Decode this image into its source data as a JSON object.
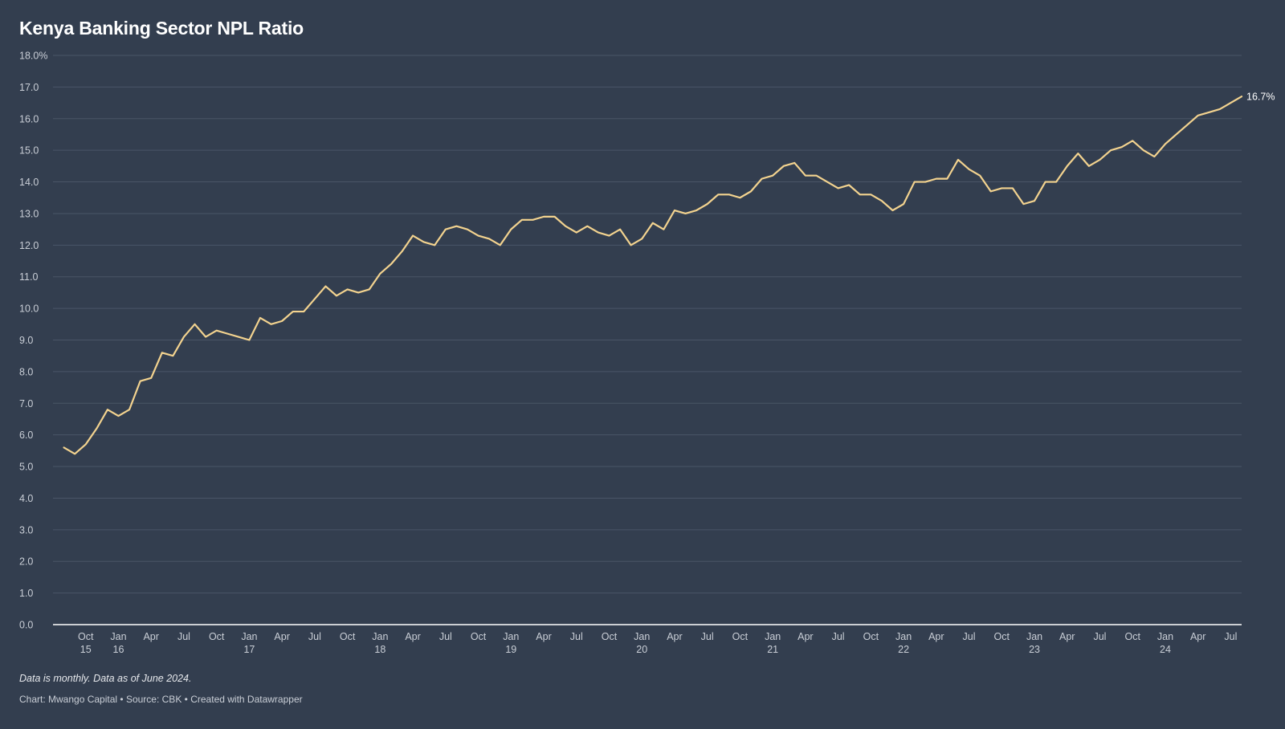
{
  "title": "Kenya Banking Sector NPL Ratio",
  "footer": {
    "note": "Data is monthly. Data as of June 2024.",
    "credit_chart": "Chart: Mwango Capital",
    "credit_source": "Source: CBK",
    "credit_tool": "Created with Datawrapper",
    "separator": "•"
  },
  "colors": {
    "background": "#333e4f",
    "line": "#f3d38f",
    "grid": "#4a5567",
    "axis": "#ffffff",
    "tick_text": "#c9ced6"
  },
  "chart_data": {
    "type": "line",
    "title": "Kenya Banking Sector NPL Ratio",
    "xlabel": "",
    "ylabel": "",
    "ylim": [
      0,
      18
    ],
    "y_ticks": [
      0,
      1,
      2,
      3,
      4,
      5,
      6,
      7,
      8,
      9,
      10,
      11,
      12,
      13,
      14,
      15,
      16,
      17,
      18
    ],
    "y_tick_labels": [
      "0.0",
      "1.0",
      "2.0",
      "3.0",
      "4.0",
      "5.0",
      "6.0",
      "7.0",
      "8.0",
      "9.0",
      "10.0",
      "11.0",
      "12.0",
      "13.0",
      "14.0",
      "15.0",
      "16.0",
      "17.0",
      "18.0%"
    ],
    "grid": true,
    "x_start": "2015-07",
    "x_end": "2024-08",
    "x_ticks": [
      {
        "date": "2015-10",
        "label": "Oct",
        "sub": "15"
      },
      {
        "date": "2016-01",
        "label": "Jan",
        "sub": "16"
      },
      {
        "date": "2016-04",
        "label": "Apr",
        "sub": ""
      },
      {
        "date": "2016-07",
        "label": "Jul",
        "sub": ""
      },
      {
        "date": "2016-10",
        "label": "Oct",
        "sub": ""
      },
      {
        "date": "2017-01",
        "label": "Jan",
        "sub": "17"
      },
      {
        "date": "2017-04",
        "label": "Apr",
        "sub": ""
      },
      {
        "date": "2017-07",
        "label": "Jul",
        "sub": ""
      },
      {
        "date": "2017-10",
        "label": "Oct",
        "sub": ""
      },
      {
        "date": "2018-01",
        "label": "Jan",
        "sub": "18"
      },
      {
        "date": "2018-04",
        "label": "Apr",
        "sub": ""
      },
      {
        "date": "2018-07",
        "label": "Jul",
        "sub": ""
      },
      {
        "date": "2018-10",
        "label": "Oct",
        "sub": ""
      },
      {
        "date": "2019-01",
        "label": "Jan",
        "sub": "19"
      },
      {
        "date": "2019-04",
        "label": "Apr",
        "sub": ""
      },
      {
        "date": "2019-07",
        "label": "Jul",
        "sub": ""
      },
      {
        "date": "2019-10",
        "label": "Oct",
        "sub": ""
      },
      {
        "date": "2020-01",
        "label": "Jan",
        "sub": "20"
      },
      {
        "date": "2020-04",
        "label": "Apr",
        "sub": ""
      },
      {
        "date": "2020-07",
        "label": "Jul",
        "sub": ""
      },
      {
        "date": "2020-10",
        "label": "Oct",
        "sub": ""
      },
      {
        "date": "2021-01",
        "label": "Jan",
        "sub": "21"
      },
      {
        "date": "2021-04",
        "label": "Apr",
        "sub": ""
      },
      {
        "date": "2021-07",
        "label": "Jul",
        "sub": ""
      },
      {
        "date": "2021-10",
        "label": "Oct",
        "sub": ""
      },
      {
        "date": "2022-01",
        "label": "Jan",
        "sub": "22"
      },
      {
        "date": "2022-04",
        "label": "Apr",
        "sub": ""
      },
      {
        "date": "2022-07",
        "label": "Jul",
        "sub": ""
      },
      {
        "date": "2022-10",
        "label": "Oct",
        "sub": ""
      },
      {
        "date": "2023-01",
        "label": "Jan",
        "sub": "23"
      },
      {
        "date": "2023-04",
        "label": "Apr",
        "sub": ""
      },
      {
        "date": "2023-07",
        "label": "Jul",
        "sub": ""
      },
      {
        "date": "2023-10",
        "label": "Oct",
        "sub": ""
      },
      {
        "date": "2024-01",
        "label": "Jan",
        "sub": "24"
      },
      {
        "date": "2024-04",
        "label": "Apr",
        "sub": ""
      },
      {
        "date": "2024-07",
        "label": "Jul",
        "sub": ""
      }
    ],
    "end_label": "16.7%",
    "series": [
      {
        "x": [
          "2015-08",
          "2015-09",
          "2015-10",
          "2015-11",
          "2015-12",
          "2016-01",
          "2016-02",
          "2016-03",
          "2016-04",
          "2016-05",
          "2016-06",
          "2016-07",
          "2016-08",
          "2016-09",
          "2016-10",
          "2016-11",
          "2016-12",
          "2017-01",
          "2017-02",
          "2017-03",
          "2017-04",
          "2017-05",
          "2017-06",
          "2017-07",
          "2017-08",
          "2017-09",
          "2017-10",
          "2017-11",
          "2017-12",
          "2018-01",
          "2018-02",
          "2018-03",
          "2018-04",
          "2018-05",
          "2018-06",
          "2018-07",
          "2018-08",
          "2018-09",
          "2018-10",
          "2018-11",
          "2018-12",
          "2019-01",
          "2019-02",
          "2019-03",
          "2019-04",
          "2019-05",
          "2019-06",
          "2019-07",
          "2019-08",
          "2019-09",
          "2019-10",
          "2019-11",
          "2019-12",
          "2020-01",
          "2020-02",
          "2020-03",
          "2020-04",
          "2020-05",
          "2020-06",
          "2020-07",
          "2020-08",
          "2020-09",
          "2020-10",
          "2020-11",
          "2020-12",
          "2021-01",
          "2021-02",
          "2021-03",
          "2021-04",
          "2021-05",
          "2021-06",
          "2021-07",
          "2021-08",
          "2021-09",
          "2021-10",
          "2021-11",
          "2021-12",
          "2022-01",
          "2022-02",
          "2022-03",
          "2022-04",
          "2022-05",
          "2022-06",
          "2022-07",
          "2022-08",
          "2022-09",
          "2022-10",
          "2022-11",
          "2022-12",
          "2023-01",
          "2023-02",
          "2023-03",
          "2023-04",
          "2023-05",
          "2023-06",
          "2023-07",
          "2023-08",
          "2023-09",
          "2023-10",
          "2023-11",
          "2023-12",
          "2024-01",
          "2024-02",
          "2024-03",
          "2024-04",
          "2024-05",
          "2024-06",
          "2024-07",
          "2024-08"
        ],
        "values": [
          5.6,
          5.4,
          5.7,
          6.2,
          6.8,
          6.6,
          6.8,
          7.7,
          7.8,
          8.6,
          8.5,
          9.1,
          9.5,
          9.1,
          9.3,
          9.2,
          9.1,
          9.0,
          9.7,
          9.5,
          9.6,
          9.9,
          9.9,
          10.3,
          10.7,
          10.4,
          10.6,
          10.5,
          10.6,
          11.1,
          11.4,
          11.8,
          12.3,
          12.1,
          12.0,
          12.5,
          12.6,
          12.5,
          12.3,
          12.2,
          12.0,
          12.5,
          12.8,
          12.8,
          12.9,
          12.9,
          12.6,
          12.4,
          12.6,
          12.4,
          12.3,
          12.5,
          12.0,
          12.2,
          12.7,
          12.5,
          13.1,
          13.0,
          13.1,
          13.3,
          13.6,
          13.6,
          13.5,
          13.7,
          14.1,
          14.2,
          14.5,
          14.6,
          14.2,
          14.2,
          14.0,
          13.8,
          13.9,
          13.6,
          13.6,
          13.4,
          13.1,
          13.3,
          14.0,
          14.0,
          14.1,
          14.1,
          14.7,
          14.4,
          14.2,
          13.7,
          13.8,
          13.8,
          13.3,
          13.4,
          14.0,
          14.0,
          14.5,
          14.9,
          14.5,
          14.7,
          15.0,
          15.1,
          15.3,
          15.0,
          14.8,
          15.2,
          15.5,
          15.8,
          16.1,
          16.2,
          16.3,
          16.5,
          16.7
        ]
      }
    ]
  }
}
